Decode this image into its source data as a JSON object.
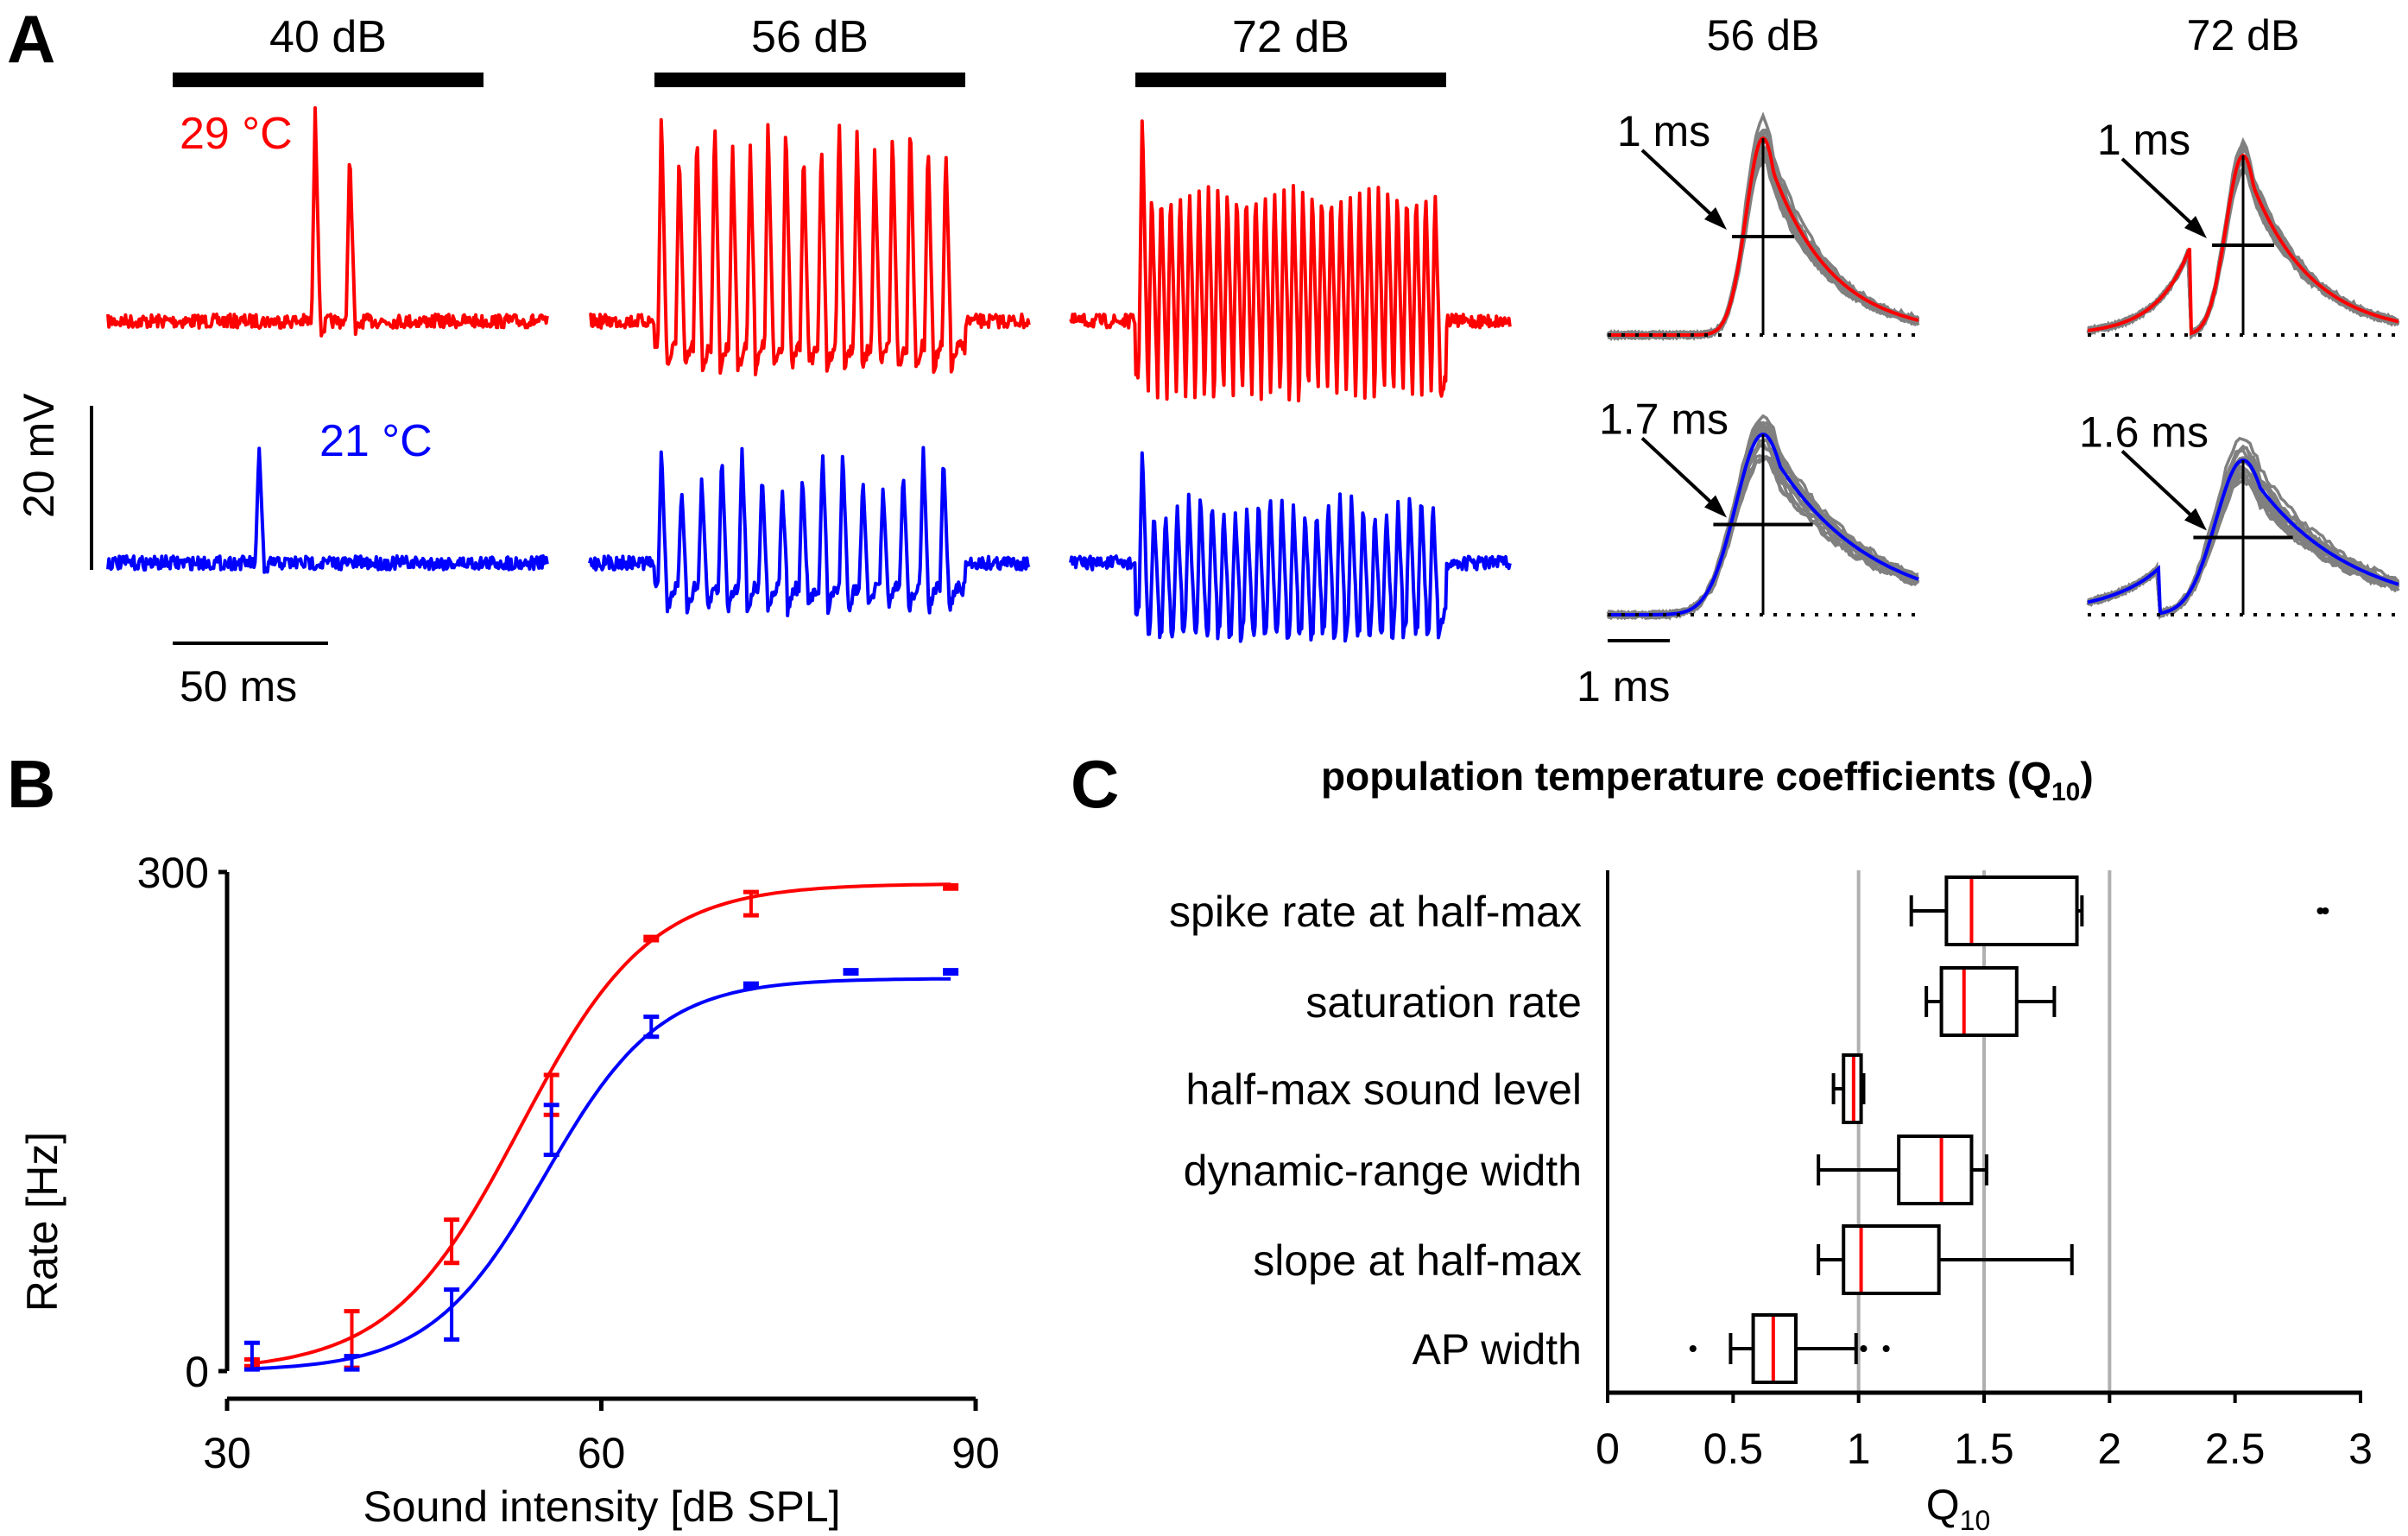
{
  "colors": {
    "warm": "#ff0000",
    "cold": "#0000ff",
    "spikes_gray": "#808080",
    "grid": "#b0b0b0",
    "ink": "#000000"
  },
  "panel_labels": {
    "a": "A",
    "b": "B",
    "c": "C"
  },
  "chart_data": [
    {
      "id": "A-traces",
      "type": "line",
      "title": "Membrane potential responses to sound at two temperatures",
      "stimulus_levels": [
        "40 dB",
        "56 dB",
        "72 dB"
      ],
      "conditions": [
        {
          "name": "29°C",
          "label": "29 °C",
          "color": "#ff0000",
          "spike_counts": [
            2,
            17,
            32
          ]
        },
        {
          "name": "21°C",
          "label": "21 °C",
          "color": "#0000ff",
          "spike_counts": [
            1,
            15,
            26
          ]
        }
      ],
      "scalebars": {
        "voltage": "20 mV",
        "time": "50 ms"
      }
    },
    {
      "id": "A-spike-shapes",
      "type": "line",
      "levels": [
        "56 dB",
        "72 dB"
      ],
      "widths": {
        "29°C": [
          "1 ms",
          "1 ms"
        ],
        "21°C": [
          "1.7 ms",
          "1.6 ms"
        ]
      },
      "scalebar": "1 ms"
    },
    {
      "id": "B",
      "type": "line",
      "title": "",
      "xlabel": "Sound intensity [dB SPL]",
      "ylabel": "Rate [Hz]",
      "xlim": [
        30,
        90
      ],
      "ylim": [
        0,
        300
      ],
      "xticks": [
        "30",
        "60",
        "90"
      ],
      "yticks": [
        "0",
        "300"
      ],
      "series": [
        {
          "name": "29°C",
          "color": "#ff0000",
          "x": [
            32,
            40,
            48,
            56,
            64,
            72,
            88
          ],
          "y": [
            5,
            19,
            78,
            166,
            260,
            281,
            291
          ],
          "err": [
            2,
            17,
            13,
            12,
            1,
            7,
            1
          ],
          "fit": {
            "ymin": 0,
            "ymax": 293,
            "x50": 53.5,
            "slope": 5.2
          }
        },
        {
          "name": "21°C",
          "color": "#0000ff",
          "x": [
            32,
            40,
            48,
            56,
            64,
            72,
            80,
            88
          ],
          "y": [
            9,
            5,
            34,
            145,
            207,
            232,
            240,
            240
          ],
          "err": [
            8,
            4,
            15,
            15,
            6,
            1,
            1,
            1
          ],
          "fit": {
            "ymin": 0,
            "ymax": 236,
            "x50": 55.5,
            "slope": 4.6
          }
        }
      ]
    },
    {
      "id": "C",
      "type": "box",
      "title": "population temperature coefficients (Q",
      "title_sub": "10",
      "title_end": ")",
      "xlabel": "Q",
      "xlabel_sub": "10",
      "xlim": [
        0,
        3
      ],
      "xticks": [
        "0",
        "0.5",
        "1",
        "1.5",
        "2",
        "2.5",
        "3"
      ],
      "gridlines": [
        1,
        1.5,
        2
      ],
      "categories": [
        "spike rate at half-max",
        "saturation rate",
        "half-max sound level",
        "dynamic-range width",
        "slope at half-max",
        "AP width"
      ],
      "boxes": [
        {
          "whisker_low": 1.21,
          "q1": 1.35,
          "median": 1.45,
          "q3": 1.87,
          "whisker_high": 1.89,
          "outliers": [
            2.84,
            2.86
          ]
        },
        {
          "whisker_low": 1.27,
          "q1": 1.33,
          "median": 1.42,
          "q3": 1.63,
          "whisker_high": 1.78,
          "outliers": []
        },
        {
          "whisker_low": 0.9,
          "q1": 0.94,
          "median": 0.98,
          "q3": 1.01,
          "whisker_high": 1.02,
          "outliers": []
        },
        {
          "whisker_low": 0.84,
          "q1": 1.16,
          "median": 1.33,
          "q3": 1.45,
          "whisker_high": 1.51,
          "outliers": []
        },
        {
          "whisker_low": 0.84,
          "q1": 0.94,
          "median": 1.01,
          "q3": 1.32,
          "whisker_high": 1.85,
          "outliers": []
        },
        {
          "whisker_low": 0.49,
          "q1": 0.58,
          "median": 0.66,
          "q3": 0.75,
          "whisker_high": 0.99,
          "outliers": [
            0.34,
            1.02,
            1.11
          ]
        }
      ]
    }
  ]
}
